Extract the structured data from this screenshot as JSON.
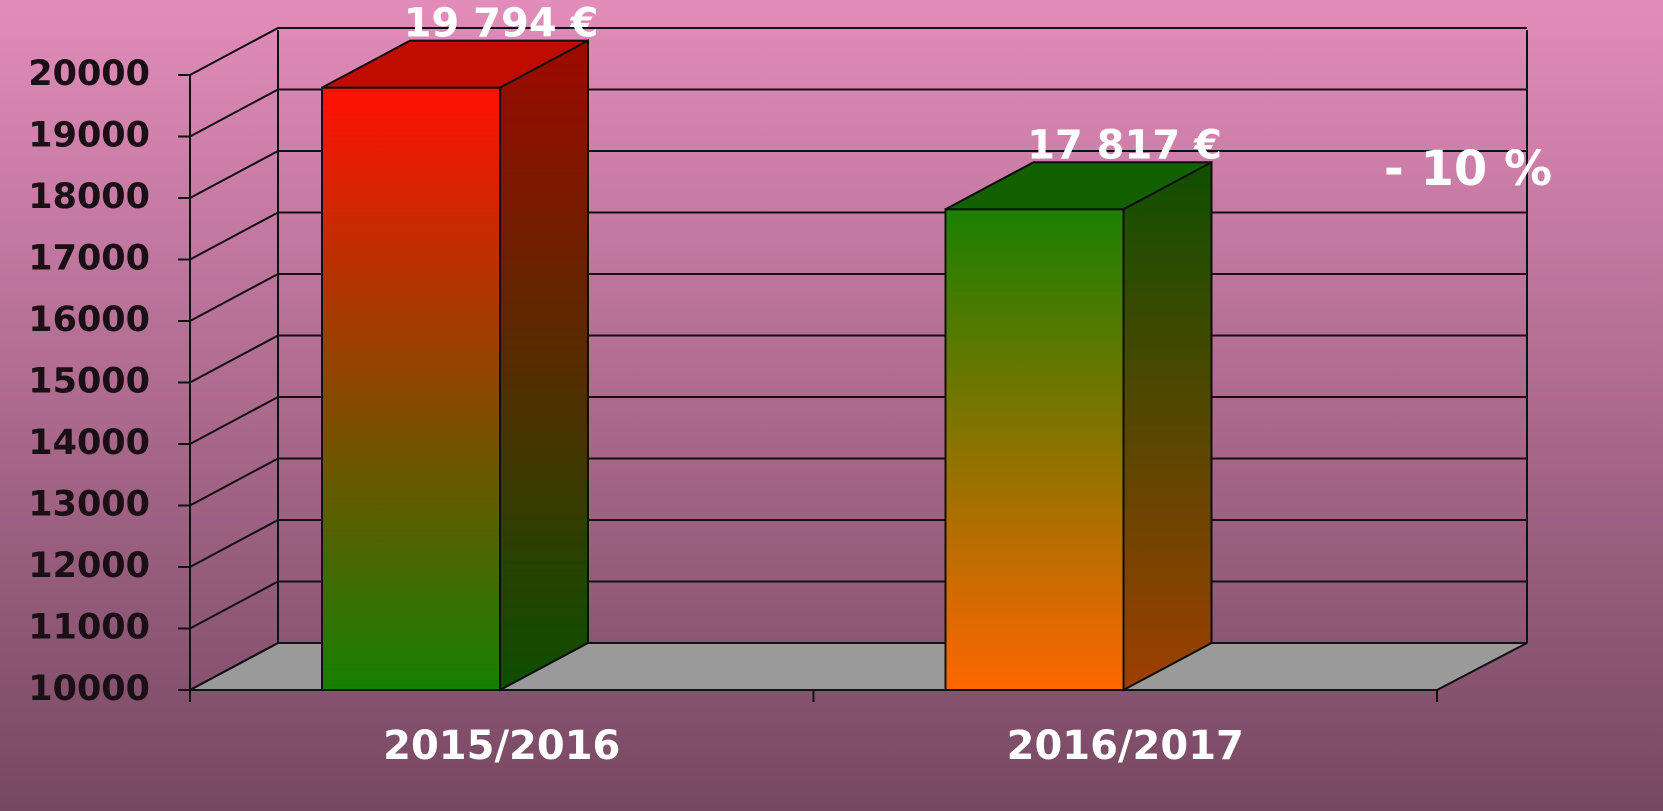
{
  "chart_data": {
    "type": "bar3d",
    "categories": [
      "2015/2016",
      "2016/2017"
    ],
    "values": [
      19794,
      17817
    ],
    "value_labels": [
      "19 794 €",
      "17 817 €"
    ],
    "bar_gradients": [
      {
        "top": "#ff1000",
        "bottom": "#158000"
      },
      {
        "top": "#1a8000",
        "bottom": "#ff6600"
      }
    ],
    "annotation": "- 10 %",
    "ylim": [
      10000,
      20000
    ],
    "yticks": [
      10000,
      11000,
      12000,
      13000,
      14000,
      15000,
      16000,
      17000,
      18000,
      19000,
      20000
    ],
    "grid": true
  }
}
